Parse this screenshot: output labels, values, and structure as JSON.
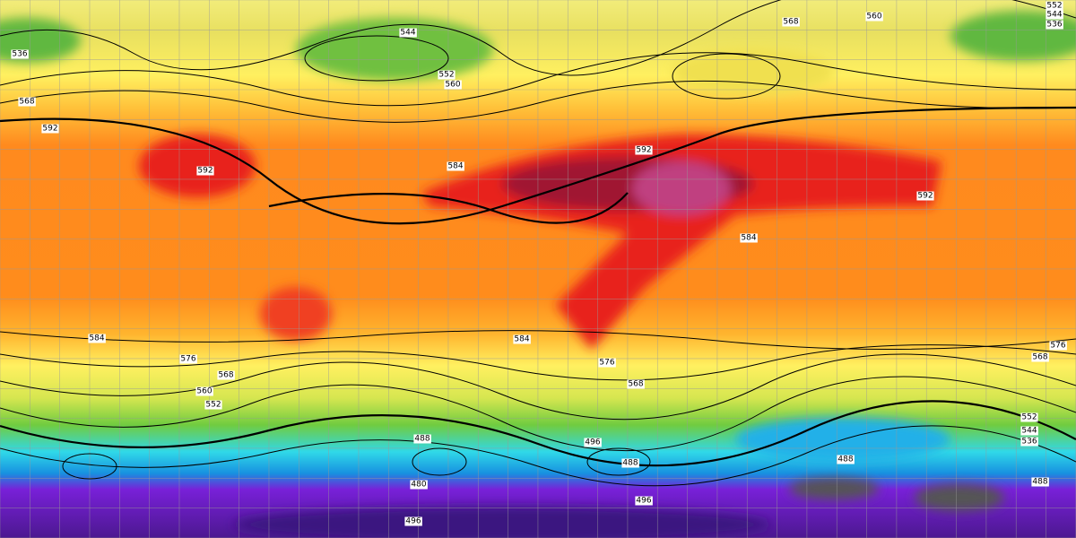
{
  "map": {
    "contour_labels": [
      "544",
      "552",
      "560",
      "568",
      "560",
      "552",
      "544",
      "536",
      "536",
      "568",
      "592",
      "592",
      "584",
      "592",
      "592",
      "584",
      "584",
      "584",
      "576",
      "568",
      "576",
      "568",
      "560",
      "552",
      "488",
      "496",
      "488",
      "480",
      "488",
      "496",
      "496",
      "488",
      "576",
      "568",
      "552",
      "544",
      "536"
    ]
  }
}
